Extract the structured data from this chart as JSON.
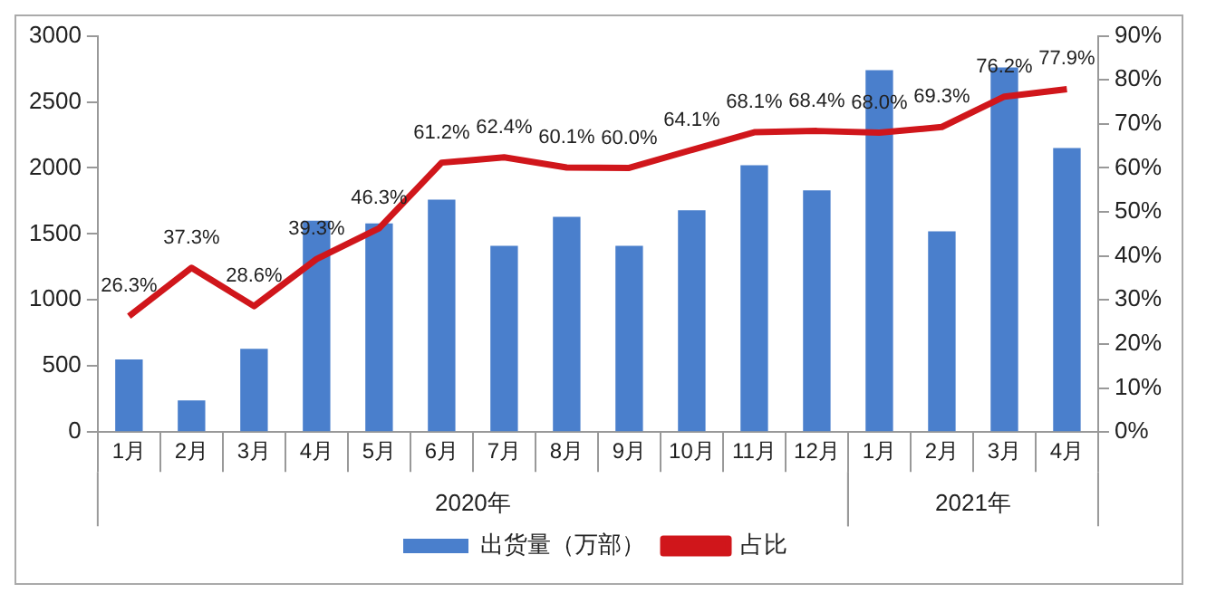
{
  "chart_data": {
    "type": "bar",
    "categories": [
      "1月",
      "2月",
      "3月",
      "4月",
      "5月",
      "6月",
      "7月",
      "8月",
      "9月",
      "10月",
      "11月",
      "12月",
      "1月",
      "2月",
      "3月",
      "4月"
    ],
    "series": [
      {
        "name": "出货量（万部）",
        "color": "#4a7fcc",
        "values": [
          550,
          240,
          630,
          1600,
          1580,
          1760,
          1410,
          1630,
          1410,
          1680,
          2020,
          1830,
          2740,
          1520,
          2760,
          2150
        ]
      },
      {
        "name": "占比",
        "type": "line",
        "axis": "y2",
        "color": "#d0161b",
        "values": [
          26.3,
          37.3,
          28.6,
          39.3,
          46.3,
          61.2,
          62.4,
          60.1,
          60.0,
          64.1,
          68.1,
          68.4,
          68.0,
          69.3,
          76.2,
          77.9
        ],
        "value_labels": [
          "26.3%",
          "37.3%",
          "28.6%",
          "39.3%",
          "46.3%",
          "61.2%",
          "62.4%",
          "60.1%",
          "60.0%",
          "64.1%",
          "68.1%",
          "68.4%",
          "68.0%",
          "69.3%",
          "76.2%",
          "77.9%"
        ]
      }
    ],
    "ylim": [
      0,
      3000
    ],
    "yticks": [
      0,
      500,
      1000,
      1500,
      2000,
      2500,
      3000
    ],
    "y2lim": [
      0,
      90
    ],
    "y2ticks": [
      {
        "value": 0,
        "label": "0%"
      },
      {
        "value": 10,
        "label": "10%"
      },
      {
        "value": 20,
        "label": "20%"
      },
      {
        "value": 30,
        "label": "30%"
      },
      {
        "value": 40,
        "label": "40%"
      },
      {
        "value": 50,
        "label": "50%"
      },
      {
        "value": 60,
        "label": "60%"
      },
      {
        "value": 70,
        "label": "70%"
      },
      {
        "value": 80,
        "label": "80%"
      },
      {
        "value": 90,
        "label": "90%"
      }
    ],
    "annotations": [
      "2020年",
      "2021年"
    ],
    "grid": false,
    "legend": "bottom",
    "marker": "none"
  }
}
